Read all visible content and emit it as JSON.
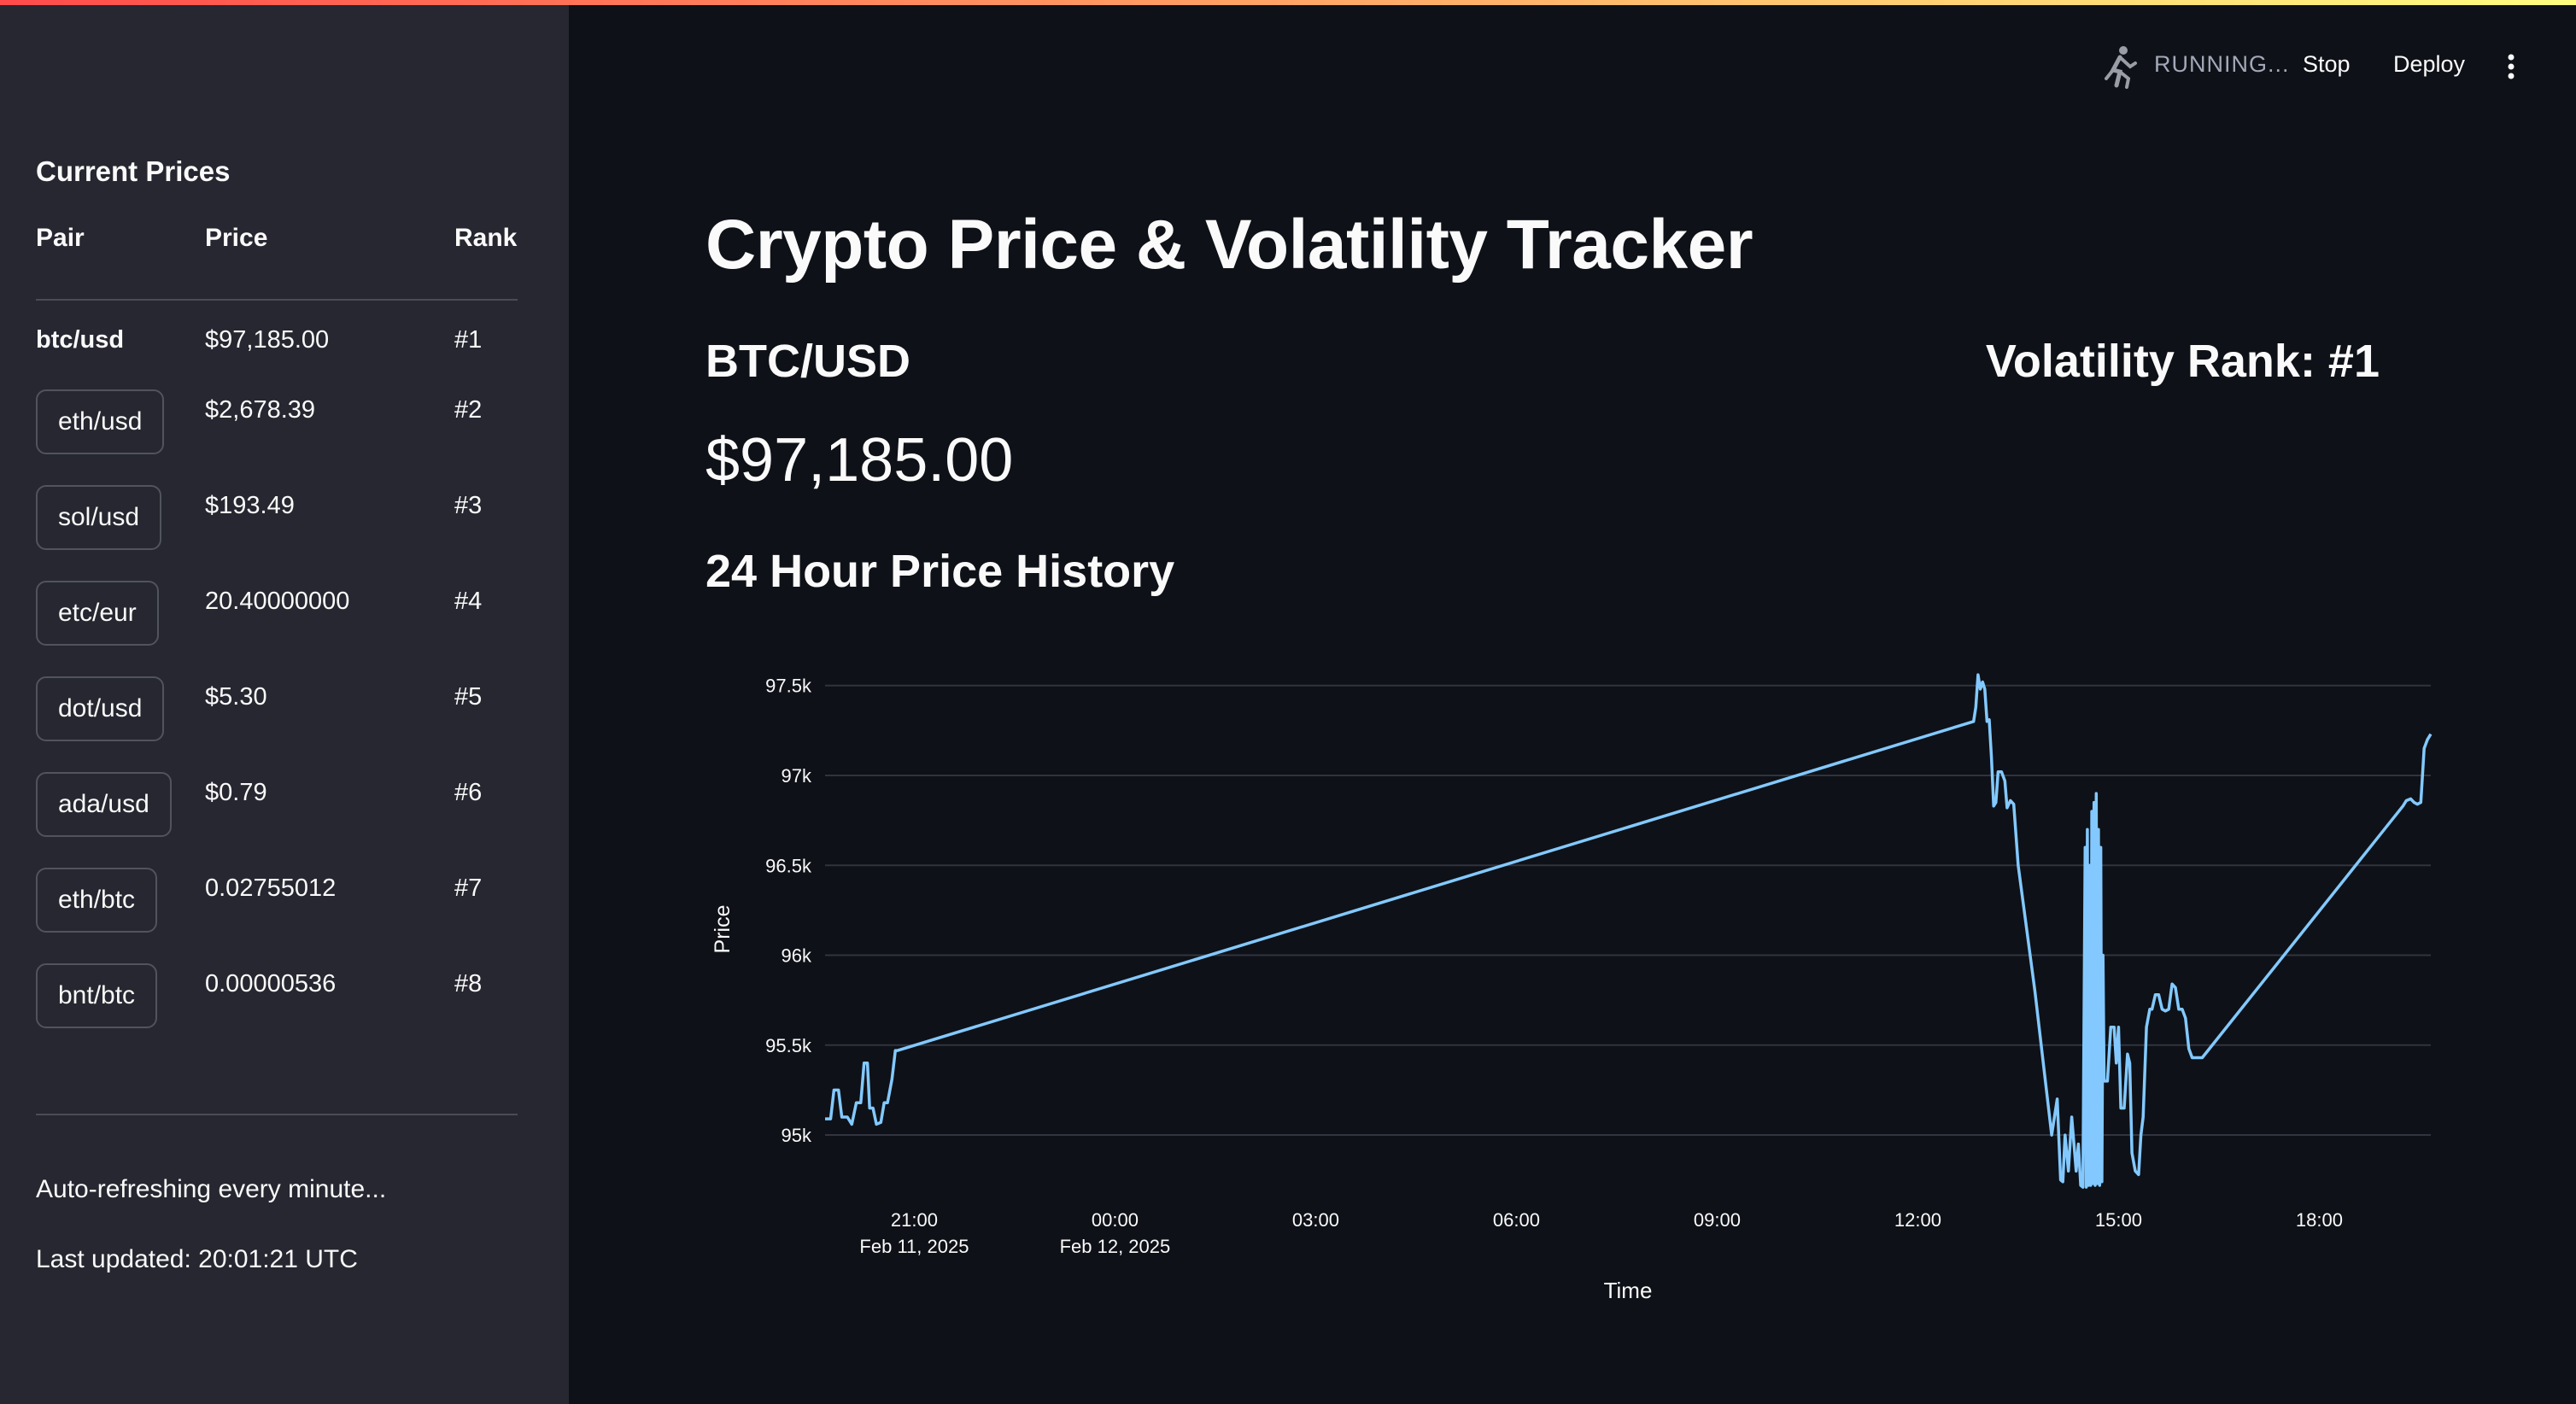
{
  "header": {
    "status_label": "RUNNING...",
    "stop_label": "Stop",
    "deploy_label": "Deploy",
    "menu_icon": "kebab-menu-icon",
    "running_icon": "running-man-icon"
  },
  "sidebar": {
    "title": "Current Prices",
    "columns": [
      "Pair",
      "Price",
      "Rank"
    ],
    "rows": [
      {
        "pair": "btc/usd",
        "price": "$97,185.00",
        "rank": "#1"
      },
      {
        "pair": "eth/usd",
        "price": "$2,678.39",
        "rank": "#2"
      },
      {
        "pair": "sol/usd",
        "price": "$193.49",
        "rank": "#3"
      },
      {
        "pair": "etc/eur",
        "price": "20.40000000",
        "rank": "#4"
      },
      {
        "pair": "dot/usd",
        "price": "$5.30",
        "rank": "#5"
      },
      {
        "pair": "ada/usd",
        "price": "$0.79",
        "rank": "#6"
      },
      {
        "pair": "eth/btc",
        "price": "0.02755012",
        "rank": "#7"
      },
      {
        "pair": "bnt/btc",
        "price": "0.00000536",
        "rank": "#8"
      }
    ],
    "refresh_note": "Auto-refreshing every minute...",
    "last_updated": "Last updated: 20:01:21 UTC"
  },
  "main": {
    "title": "Crypto Price & Volatility Tracker",
    "pair": "BTC/USD",
    "rank": "Volatility Rank: #1",
    "price": "$97,185.00",
    "history_title": "24 Hour Price History"
  },
  "colors": {
    "background": "#0e1117",
    "sidebar": "#262730",
    "line": "#83c9ff",
    "grid": "#31333f"
  },
  "chart_data": {
    "type": "line",
    "title": "",
    "xlabel": "Time",
    "ylabel": "Price",
    "ylim": [
      94720,
      97570
    ],
    "yticks": [
      95000,
      95500,
      96000,
      96500,
      97000,
      97500
    ],
    "ytick_labels": [
      "95k",
      "95.5k",
      "96k",
      "96.5k",
      "97k",
      "97.5k"
    ],
    "xlim": [
      "2025-02-11 19:40",
      "2025-02-12 19:40"
    ],
    "xticks": [
      {
        "t": "2025-02-11 21:00",
        "label": "21:00",
        "sub": "Feb 11, 2025"
      },
      {
        "t": "2025-02-12 00:00",
        "label": "00:00",
        "sub": "Feb 12, 2025"
      },
      {
        "t": "2025-02-12 03:00",
        "label": "03:00",
        "sub": ""
      },
      {
        "t": "2025-02-12 06:00",
        "label": "06:00",
        "sub": ""
      },
      {
        "t": "2025-02-12 09:00",
        "label": "09:00",
        "sub": ""
      },
      {
        "t": "2025-02-12 12:00",
        "label": "12:00",
        "sub": ""
      },
      {
        "t": "2025-02-12 15:00",
        "label": "15:00",
        "sub": ""
      },
      {
        "t": "2025-02-12 18:00",
        "label": "18:00",
        "sub": ""
      }
    ],
    "grid": true,
    "series": [
      {
        "x": [
          "2025-02-11 19:40",
          "2025-02-11 19:45",
          "2025-02-11 19:48",
          "2025-02-11 19:52",
          "2025-02-11 19:55",
          "2025-02-11 20:00",
          "2025-02-11 20:04",
          "2025-02-11 20:08",
          "2025-02-11 20:12",
          "2025-02-11 20:15",
          "2025-02-11 20:18",
          "2025-02-11 20:20",
          "2025-02-11 20:23",
          "2025-02-11 20:26",
          "2025-02-11 20:30",
          "2025-02-11 20:33",
          "2025-02-11 20:36",
          "2025-02-11 20:40",
          "2025-02-11 20:43",
          "2025-02-11 20:45",
          "2025-02-12 12:50",
          "2025-02-12 12:52",
          "2025-02-12 12:54",
          "2025-02-12 12:56",
          "2025-02-12 12:58",
          "2025-02-12 13:00",
          "2025-02-12 13:02",
          "2025-02-12 13:04",
          "2025-02-12 13:06",
          "2025-02-12 13:08",
          "2025-02-12 13:10",
          "2025-02-12 13:12",
          "2025-02-12 13:15",
          "2025-02-12 13:18",
          "2025-02-12 13:20",
          "2025-02-12 13:23",
          "2025-02-12 13:26",
          "2025-02-12 13:30",
          "2025-02-12 13:45",
          "2025-02-12 14:00",
          "2025-02-12 14:05",
          "2025-02-12 14:08",
          "2025-02-12 14:10",
          "2025-02-12 14:12",
          "2025-02-12 14:15",
          "2025-02-12 14:18",
          "2025-02-12 14:20",
          "2025-02-12 14:22",
          "2025-02-12 14:24",
          "2025-02-12 14:26",
          "2025-02-12 14:28",
          "2025-02-12 14:30",
          "2025-02-12 14:31",
          "2025-02-12 14:32",
          "2025-02-12 14:33",
          "2025-02-12 14:34",
          "2025-02-12 14:35",
          "2025-02-12 14:36",
          "2025-02-12 14:37",
          "2025-02-12 14:38",
          "2025-02-12 14:39",
          "2025-02-12 14:40",
          "2025-02-12 14:41",
          "2025-02-12 14:42",
          "2025-02-12 14:43",
          "2025-02-12 14:44",
          "2025-02-12 14:45",
          "2025-02-12 14:46",
          "2025-02-12 14:47",
          "2025-02-12 14:50",
          "2025-02-12 14:53",
          "2025-02-12 14:56",
          "2025-02-12 14:58",
          "2025-02-12 15:00",
          "2025-02-12 15:02",
          "2025-02-12 15:05",
          "2025-02-12 15:08",
          "2025-02-12 15:10",
          "2025-02-12 15:12",
          "2025-02-12 15:15",
          "2025-02-12 15:18",
          "2025-02-12 15:20",
          "2025-02-12 15:22",
          "2025-02-12 15:25",
          "2025-02-12 15:28",
          "2025-02-12 15:30",
          "2025-02-12 15:33",
          "2025-02-12 15:36",
          "2025-02-12 15:39",
          "2025-02-12 15:42",
          "2025-02-12 15:45",
          "2025-02-12 15:48",
          "2025-02-12 15:51",
          "2025-02-12 15:54",
          "2025-02-12 15:57",
          "2025-02-12 16:00",
          "2025-02-12 16:03",
          "2025-02-12 16:06",
          "2025-02-12 16:10",
          "2025-02-12 16:15",
          "2025-02-12 19:15",
          "2025-02-12 19:18",
          "2025-02-12 19:22",
          "2025-02-12 19:25",
          "2025-02-12 19:28",
          "2025-02-12 19:31",
          "2025-02-12 19:34",
          "2025-02-12 19:37",
          "2025-02-12 19:40"
        ],
        "y": [
          95090,
          95090,
          95250,
          95250,
          95100,
          95100,
          95060,
          95180,
          95180,
          95400,
          95400,
          95150,
          95150,
          95060,
          95070,
          95180,
          95180,
          95310,
          95470,
          95470,
          97300,
          97380,
          97560,
          97480,
          97520,
          97480,
          97300,
          97310,
          97100,
          96830,
          96850,
          97020,
          97020,
          96970,
          96820,
          96860,
          96840,
          96500,
          95800,
          95000,
          95200,
          94750,
          94740,
          95000,
          94800,
          95100,
          94950,
          94800,
          94950,
          94720,
          94710,
          96600,
          94710,
          96700,
          94720,
          96500,
          94720,
          96800,
          94730,
          96850,
          94720,
          96900,
          94730,
          96700,
          94720,
          96600,
          94740,
          96000,
          95300,
          95300,
          95600,
          95600,
          95400,
          95600,
          95150,
          95150,
          95450,
          95400,
          94900,
          94800,
          94780,
          95000,
          95100,
          95600,
          95700,
          95700,
          95780,
          95780,
          95700,
          95690,
          95700,
          95840,
          95820,
          95700,
          95700,
          95650,
          95480,
          95430,
          95430,
          95430,
          96830,
          96860,
          96870,
          96850,
          96840,
          96850,
          97150,
          97200,
          97230
        ]
      }
    ]
  }
}
